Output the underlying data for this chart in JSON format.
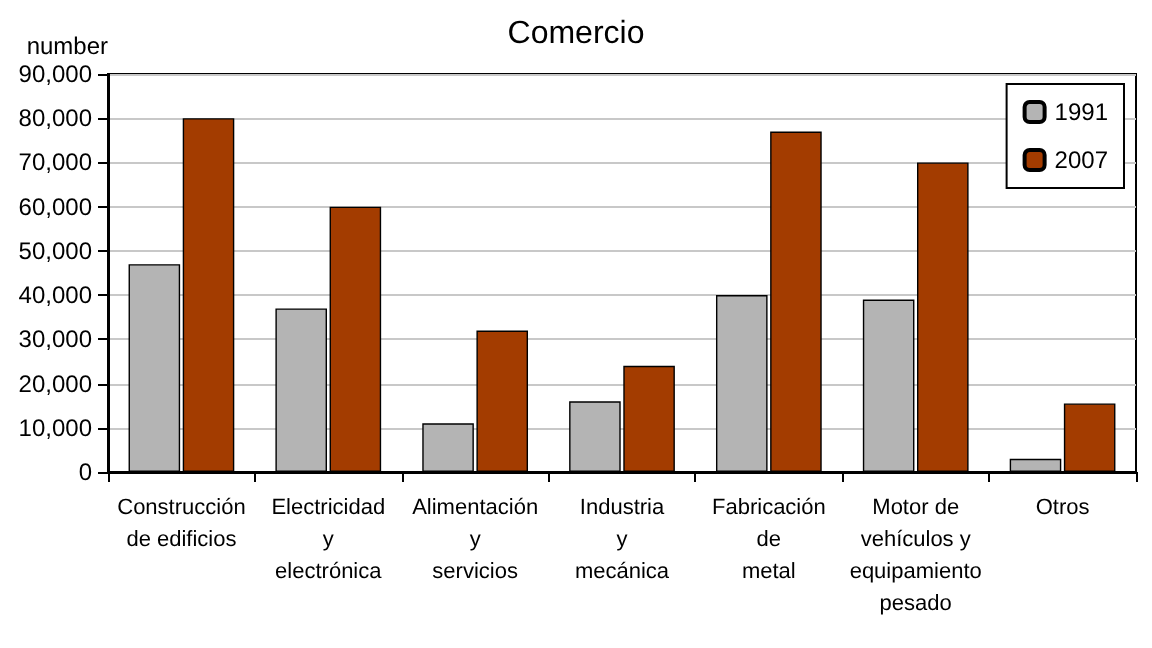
{
  "chart_data": {
    "type": "bar",
    "title": "Comercio",
    "ylabel": "number",
    "categories": [
      "Construcción\nde edificios",
      "Electricidad\ny\nelectrónica",
      "Alimentación\ny\nservicios",
      "Industria\ny\nmecánica",
      "Fabricación\nde\nmetal",
      "Motor de\nvehículos y\nequipamiento\npesado",
      "Otros"
    ],
    "series": [
      {
        "name": "1991",
        "color": "#b4b4b4",
        "values": [
          47000,
          37000,
          11000,
          16000,
          40000,
          39000,
          3000
        ]
      },
      {
        "name": "2007",
        "color": "#a33c00",
        "values": [
          80000,
          60000,
          32000,
          24000,
          77000,
          70000,
          15500
        ]
      }
    ],
    "ylim": [
      0,
      90000
    ],
    "yticks": [
      0,
      {
        "value": 10000,
        "label": "10,000"
      },
      {
        "value": 20000,
        "label": "20,000"
      },
      {
        "value": 30000,
        "label": "30,000"
      },
      {
        "value": 40000,
        "label": "40,000"
      },
      {
        "value": 50000,
        "label": "50,000"
      },
      {
        "value": 60000,
        "label": "60,000"
      },
      {
        "value": 70000,
        "label": "70,000"
      },
      {
        "value": 80000,
        "label": "80,000"
      },
      {
        "value": 90000,
        "label": "90,000"
      }
    ],
    "grid": "y",
    "legend": "top right"
  }
}
